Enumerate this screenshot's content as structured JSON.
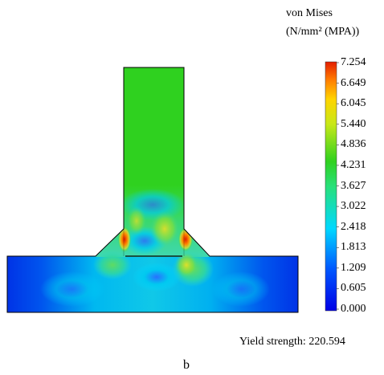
{
  "legend": {
    "title_line1": "von Mises",
    "title_line2": "(N/mm² (MPA))",
    "ticks": [
      "7.254",
      "6.649",
      "6.045",
      "5.440",
      "4.836",
      "4.231",
      "3.627",
      "3.022",
      "2.418",
      "1.813",
      "1.209",
      "0.605",
      "0.000"
    ],
    "max": 7.254,
    "min": 0.0
  },
  "yield_strength": "Yield strength: 220.594",
  "caption": "b",
  "colors": {
    "low": "#0000e6",
    "mid_low": "#00d8ff",
    "mid": "#2fd11f",
    "mid_high": "#ffd400",
    "high": "#e31d00",
    "outline": "#000000"
  }
}
